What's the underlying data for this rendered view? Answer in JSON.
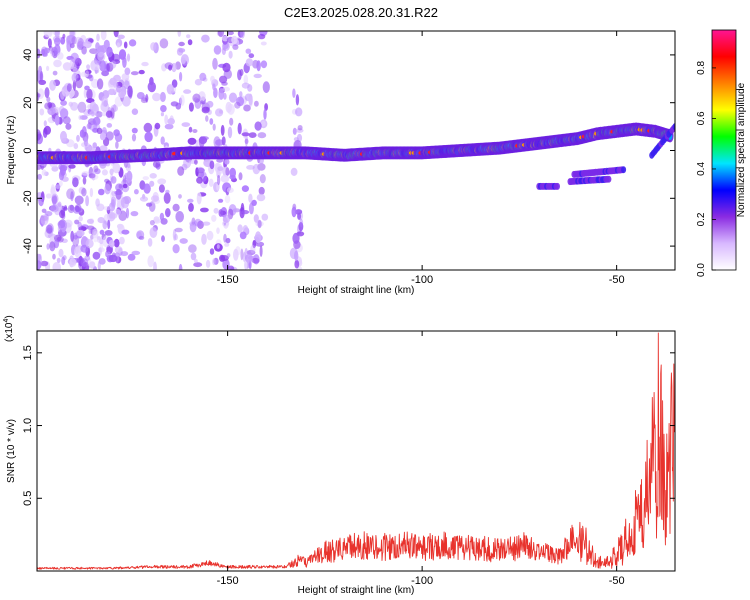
{
  "title": "C2E3.2025.028.20.31.R22",
  "chart_data": [
    {
      "type": "heatmap",
      "xlabel": "Height of straight line (km)",
      "ylabel": "Frequency (Hz)",
      "xlim": [
        -199,
        -35
      ],
      "ylim": [
        -50,
        50
      ],
      "x_ticks": [
        -150,
        -100,
        -50
      ],
      "x_tick_labels": [
        "-150",
        "-100",
        "-50"
      ],
      "y_ticks": [
        -40,
        -20,
        0,
        20,
        40
      ],
      "y_tick_labels": [
        "-40",
        "-20",
        "0",
        "20",
        "40"
      ],
      "colorbar": {
        "label": "Normalized spectral amplitude",
        "range": [
          0,
          0.95
        ],
        "ticks": [
          0,
          0.2,
          0.4,
          0.6,
          0.8
        ],
        "tick_labels": [
          "0.0",
          "0.2",
          "0.4",
          "0.6",
          "0.8"
        ],
        "colors": [
          "#ffffff",
          "#d8b8ff",
          "#8a2be2",
          "#0000ff",
          "#00e5ff",
          "#00ff00",
          "#ffff00",
          "#ff8000",
          "#ff0000",
          "#ff1493"
        ]
      },
      "ridge": {
        "x": [
          -199,
          -185,
          -170,
          -160,
          -150,
          -140,
          -130,
          -120,
          -110,
          -100,
          -90,
          -80,
          -70,
          -60,
          -55,
          -50,
          -45,
          -40,
          -36
        ],
        "frequency": [
          -3,
          -3,
          -2,
          -1,
          -1,
          -1,
          -1,
          -2,
          -1,
          -1,
          0,
          1,
          3,
          5,
          7,
          8,
          9,
          8,
          6
        ]
      },
      "secondary_features": [
        {
          "x": [
            -61,
            -48
          ],
          "frequency": [
            -10,
            -8
          ]
        },
        {
          "x": [
            -62,
            -52
          ],
          "frequency": [
            -13,
            -12
          ]
        },
        {
          "x": [
            -70,
            -65
          ],
          "frequency": [
            -15,
            -15
          ]
        },
        {
          "x": [
            -41,
            -35
          ],
          "frequency": [
            -2,
            10
          ]
        }
      ],
      "grid": false
    },
    {
      "type": "line",
      "xlabel": "Height of straight line (km)",
      "ylabel": "SNR (10 * v/v)",
      "y_multiplier": "(x10^4)",
      "xlim": [
        -199,
        -35
      ],
      "ylim": [
        0,
        1.65
      ],
      "x_ticks": [
        -150,
        -100,
        -50
      ],
      "x_tick_labels": [
        "-150",
        "-100",
        "-50"
      ],
      "y_ticks": [
        0.5,
        1.0,
        1.5
      ],
      "y_tick_labels": [
        "0.5",
        "1.0",
        "1.5"
      ],
      "series": [
        {
          "color": "#e8332d",
          "x": [
            -199,
            -190,
            -180,
            -170,
            -160,
            -155,
            -150,
            -145,
            -140,
            -135,
            -132,
            -130,
            -125,
            -120,
            -115,
            -110,
            -105,
            -100,
            -95,
            -90,
            -85,
            -80,
            -75,
            -72,
            -70,
            -65,
            -62,
            -60,
            -58,
            -55,
            -52,
            -50,
            -48,
            -46,
            -44,
            -42,
            -40,
            -39,
            -38,
            -36,
            -35
          ],
          "values": [
            0.02,
            0.02,
            0.02,
            0.03,
            0.03,
            0.06,
            0.03,
            0.03,
            0.03,
            0.03,
            0.09,
            0.07,
            0.16,
            0.19,
            0.21,
            0.2,
            0.21,
            0.2,
            0.21,
            0.2,
            0.19,
            0.17,
            0.2,
            0.24,
            0.17,
            0.12,
            0.24,
            0.35,
            0.28,
            0.08,
            0.12,
            0.2,
            0.3,
            0.45,
            0.65,
            0.9,
            1.3,
            1.7,
            1.0,
            1.2,
            1.45
          ]
        }
      ],
      "grid": false
    }
  ]
}
